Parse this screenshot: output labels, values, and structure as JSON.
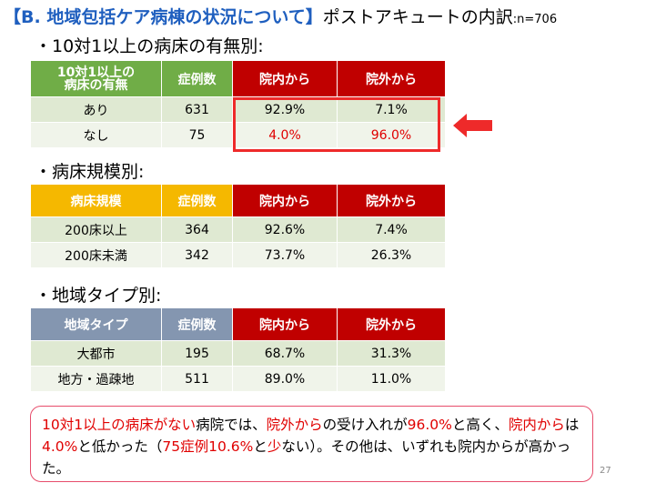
{
  "title": {
    "bracket_text": "【B. 地域包括ケア病棟の状況について】",
    "main_text": "ポストアキュートの内訳",
    "n_text": ":n=706"
  },
  "sections": [
    {
      "label": "・10対1以上の病床の有無別:",
      "header": [
        "10対1以上の病床の有無",
        "症例数",
        "院内から",
        "院外から"
      ],
      "rows": [
        [
          "あり",
          "631",
          "92.9%",
          "7.1%"
        ],
        [
          "なし",
          "75",
          "4.0%",
          "96.0%"
        ]
      ]
    },
    {
      "label": "・病床規模別:",
      "header": [
        "病床規模",
        "症例数",
        "院内から",
        "院外から"
      ],
      "rows": [
        [
          "200床以上",
          "364",
          "92.6%",
          "7.4%"
        ],
        [
          "200床未満",
          "342",
          "73.7%",
          "26.3%"
        ]
      ]
    },
    {
      "label": "・地域タイプ別:",
      "header": [
        "地域タイプ",
        "症例数",
        "院内から",
        "院外から"
      ],
      "rows": [
        [
          "大都市",
          "195",
          "68.7%",
          "31.3%"
        ],
        [
          "地方・過疎地",
          "511",
          "89.0%",
          "11.0%"
        ]
      ]
    }
  ],
  "header_line1": "10対1以上の",
  "header_line2": "病床の有無",
  "note": {
    "s1": "10対1以上の病床がない",
    "s2": "病院では、",
    "s3": "院外から",
    "s4": "の受け入れが",
    "s5": "96.0%",
    "s6": "と高く、",
    "s7": "院内から",
    "s8": "は",
    "s9": "4.0%",
    "s10": "と低かった（",
    "s11": "75症例10.6%",
    "s12": "と",
    "s13": "少",
    "s14": "ない）。その他は、いずれも院内からが高かった。"
  },
  "page_number": "27",
  "colors": {
    "title_blue": "#1f5fbf",
    "header_green": "#70ad47",
    "header_orange": "#f5b800",
    "header_slate": "#8496b0",
    "header_red": "#c00000",
    "highlight_red": "#ee2a2a"
  }
}
